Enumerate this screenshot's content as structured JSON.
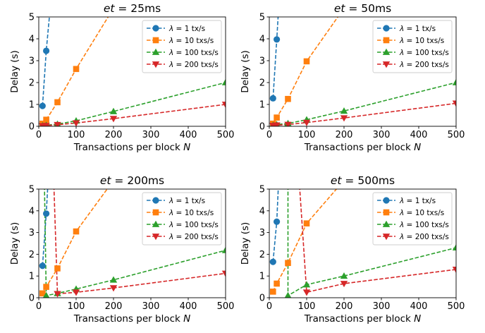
{
  "chart_data": [
    {
      "type": "line",
      "title_var": "et",
      "title_rest": " = 25ms",
      "xlabel_text": "Transactions per block ",
      "xlabel_var": "N",
      "ylabel": "Delay (s)",
      "xlim": [
        0,
        500
      ],
      "ylim": [
        0,
        5
      ],
      "xticks": [
        0,
        100,
        200,
        300,
        400,
        500
      ],
      "yticks": [
        0,
        1,
        2,
        3,
        4,
        5
      ],
      "legend": "top-right",
      "series": [
        {
          "lam": "λ",
          "name": " = 1 tx/s",
          "color": "#1f77b4",
          "marker": "circle",
          "x": [
            10,
            20,
            30
          ],
          "y": [
            0.93,
            3.45,
            5.3
          ]
        },
        {
          "lam": "λ",
          "name": " = 10 txs/s",
          "color": "#ff7f0e",
          "marker": "square",
          "x": [
            10,
            20,
            50,
            100,
            200
          ],
          "y": [
            0.12,
            0.3,
            1.1,
            2.62,
            5.4
          ]
        },
        {
          "lam": "λ",
          "name": " = 100 txs/s",
          "color": "#2ca02c",
          "marker": "triangle-up",
          "x": [
            10,
            20,
            50,
            100,
            200,
            500
          ],
          "y": [
            0.03,
            0.05,
            0.1,
            0.25,
            0.68,
            2.0
          ]
        },
        {
          "lam": "λ",
          "name": " = 200 txs/s",
          "color": "#d62728",
          "marker": "triangle-down",
          "x": [
            10,
            20,
            50,
            100,
            200,
            500
          ],
          "y": [
            0.02,
            0.03,
            0.07,
            0.15,
            0.35,
            1.0
          ]
        }
      ]
    },
    {
      "type": "line",
      "title_var": "et",
      "title_rest": " = 50ms",
      "xlabel_text": "Transactions per block ",
      "xlabel_var": "N",
      "ylabel": "Delay (s)",
      "xlim": [
        0,
        500
      ],
      "ylim": [
        0,
        5
      ],
      "xticks": [
        0,
        100,
        200,
        300,
        400,
        500
      ],
      "yticks": [
        0,
        1,
        2,
        3,
        4,
        5
      ],
      "legend": "top-right",
      "series": [
        {
          "lam": "λ",
          "name": " = 1 tx/s",
          "color": "#1f77b4",
          "marker": "circle",
          "x": [
            10,
            20,
            25
          ],
          "y": [
            1.28,
            3.97,
            5.4
          ]
        },
        {
          "lam": "λ",
          "name": " = 10 txs/s",
          "color": "#ff7f0e",
          "marker": "square",
          "x": [
            10,
            20,
            50,
            100,
            200
          ],
          "y": [
            0.12,
            0.4,
            1.25,
            2.97,
            5.4
          ]
        },
        {
          "lam": "λ",
          "name": " = 100 txs/s",
          "color": "#2ca02c",
          "marker": "triangle-up",
          "x": [
            10,
            20,
            50,
            100,
            200,
            500
          ],
          "y": [
            0.05,
            0.08,
            0.13,
            0.3,
            0.7,
            2.0
          ]
        },
        {
          "lam": "λ",
          "name": " = 200 txs/s",
          "color": "#d62728",
          "marker": "triangle-down",
          "x": [
            10,
            20,
            50,
            100,
            200,
            500
          ],
          "y": [
            0.03,
            0.05,
            0.08,
            0.17,
            0.38,
            1.05
          ]
        }
      ]
    },
    {
      "type": "line",
      "title_var": "et",
      "title_rest": " = 200ms",
      "xlabel_text": "Transactions per block ",
      "xlabel_var": "N",
      "ylabel": "Delay (s)",
      "xlim": [
        0,
        500
      ],
      "ylim": [
        0,
        5
      ],
      "xticks": [
        0,
        100,
        200,
        300,
        400,
        500
      ],
      "yticks": [
        0,
        1,
        2,
        3,
        4,
        5
      ],
      "legend": "top-right",
      "series": [
        {
          "lam": "λ",
          "name": " = 1 tx/s",
          "color": "#1f77b4",
          "marker": "circle",
          "x": [
            10,
            20,
            25
          ],
          "y": [
            1.47,
            3.87,
            5.4
          ]
        },
        {
          "lam": "λ",
          "name": " = 10 txs/s",
          "color": "#ff7f0e",
          "marker": "square",
          "x": [
            10,
            20,
            50,
            100,
            200
          ],
          "y": [
            0.2,
            0.5,
            1.35,
            3.05,
            5.4
          ]
        },
        {
          "lam": "λ",
          "name": " = 100 txs/s",
          "color": "#2ca02c",
          "marker": "triangle-up",
          "x": [
            15,
            20,
            50,
            100,
            200,
            500
          ],
          "y": [
            5.4,
            0.1,
            0.2,
            0.4,
            0.82,
            2.18
          ]
        },
        {
          "lam": "λ",
          "name": " = 200 txs/s",
          "color": "#d62728",
          "marker": "triangle-down",
          "x": [
            40,
            50,
            100,
            200,
            500
          ],
          "y": [
            5.4,
            0.18,
            0.25,
            0.45,
            1.12
          ]
        }
      ]
    },
    {
      "type": "line",
      "title_var": "et",
      "title_rest": " = 500ms",
      "xlabel_text": "Transactions per block ",
      "xlabel_var": "N",
      "ylabel": "Delay (s)",
      "xlim": [
        0,
        500
      ],
      "ylim": [
        0,
        5
      ],
      "xticks": [
        0,
        100,
        200,
        300,
        400,
        500
      ],
      "yticks": [
        0,
        1,
        2,
        3,
        4,
        5
      ],
      "legend": "top-right",
      "series": [
        {
          "lam": "λ",
          "name": " = 1 tx/s",
          "color": "#1f77b4",
          "marker": "circle",
          "x": [
            10,
            20,
            25
          ],
          "y": [
            1.65,
            3.5,
            5.4
          ]
        },
        {
          "lam": "λ",
          "name": " = 10 txs/s",
          "color": "#ff7f0e",
          "marker": "square",
          "x": [
            10,
            20,
            50,
            100,
            200
          ],
          "y": [
            0.28,
            0.65,
            1.6,
            3.42,
            5.4
          ]
        },
        {
          "lam": "λ",
          "name": " = 100 txs/s",
          "color": "#2ca02c",
          "marker": "triangle-up",
          "x": [
            50,
            50,
            100,
            200,
            500
          ],
          "y": [
            5.4,
            0.1,
            0.6,
            1.0,
            2.3
          ]
        },
        {
          "lam": "λ",
          "name": " = 200 txs/s",
          "color": "#d62728",
          "marker": "triangle-down",
          "x": [
            80,
            100,
            200,
            500
          ],
          "y": [
            5.4,
            0.25,
            0.65,
            1.3
          ]
        }
      ]
    }
  ]
}
